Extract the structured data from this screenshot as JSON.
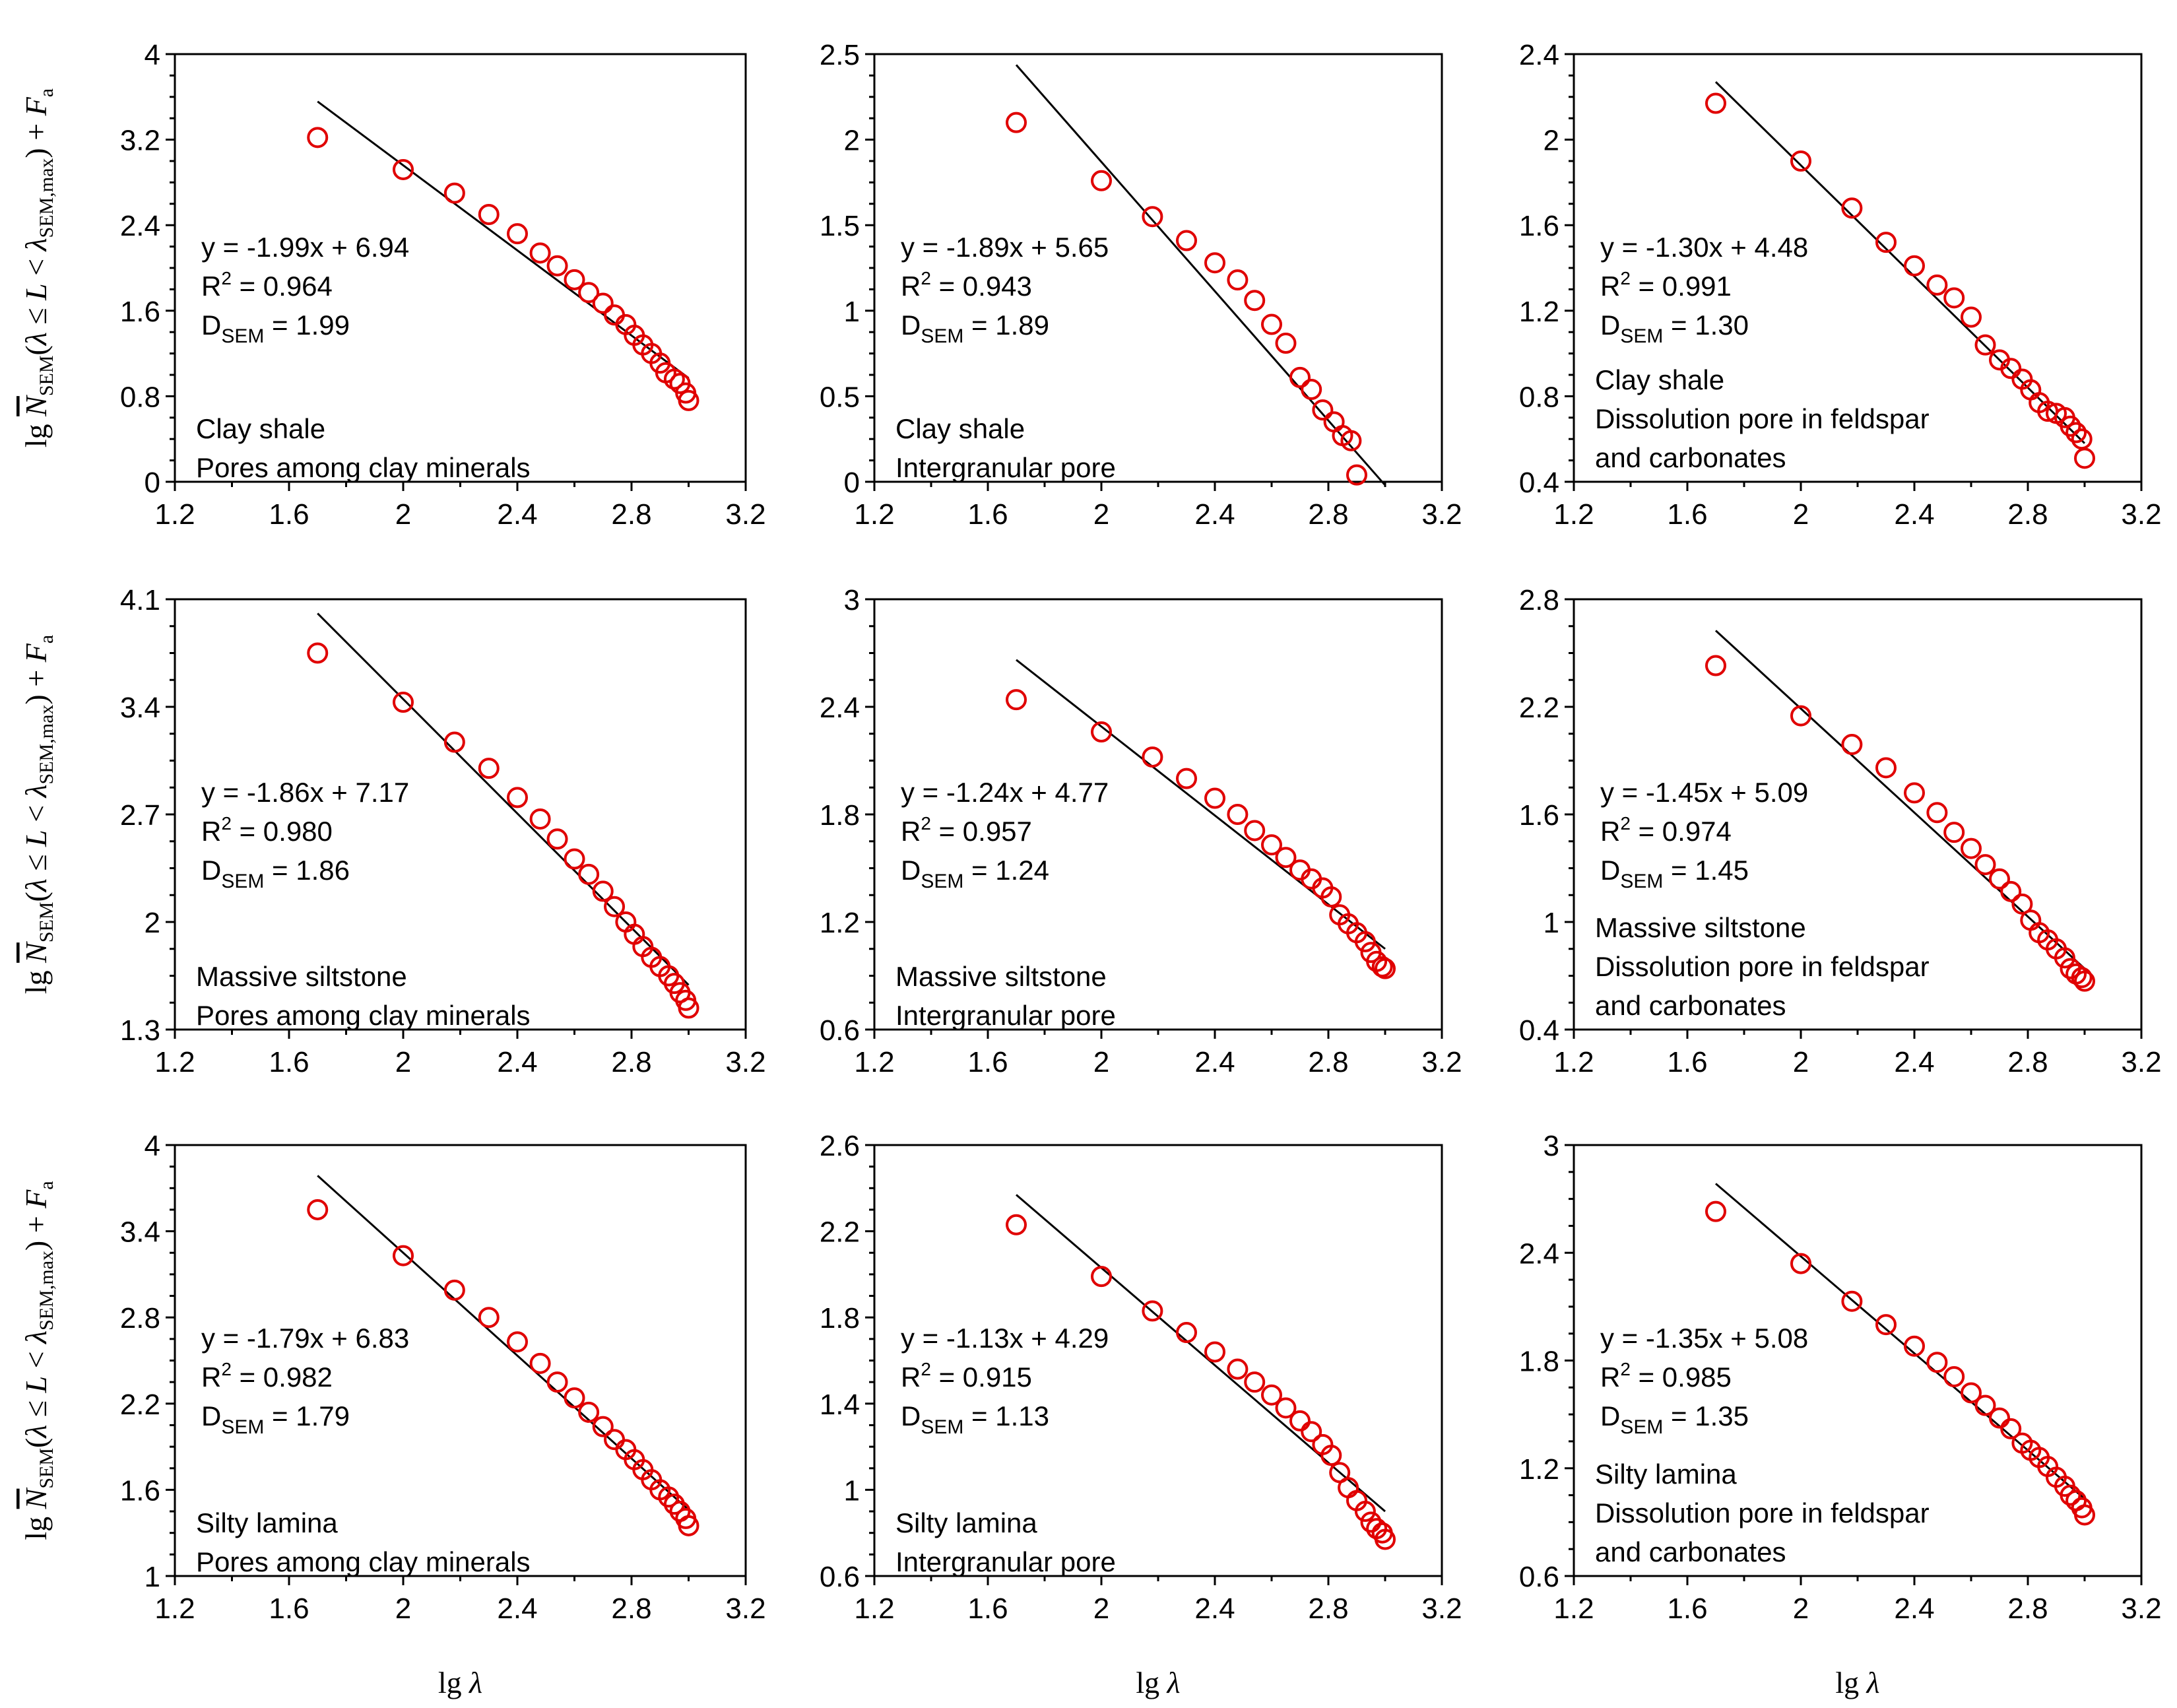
{
  "figure": {
    "ylabel": {
      "prefix": "lg ",
      "N": "N",
      "N_sub": "SEM",
      "open": "(",
      "lambda": "λ",
      "le": " ≤ ",
      "L": "L",
      "lt": " < ",
      "lambda2": "λ",
      "lambda2_sub": "SEM,max",
      "close": ")",
      "plus": " + ",
      "F": "F",
      "F_sub": "a"
    },
    "xlabel": {
      "prefix": "lg ",
      "lambda": "λ"
    }
  },
  "chart_data": [
    {
      "type": "scatter",
      "xlim": [
        1.2,
        3.2
      ],
      "xticks": [
        "1.2",
        "1.6",
        "2",
        "2.4",
        "2.8",
        "3.2"
      ],
      "ylim": [
        0,
        4
      ],
      "yticks": [
        "0",
        "0.8",
        "1.6",
        "2.4",
        "3.2",
        "4"
      ],
      "x": [
        1.7,
        2.0,
        2.18,
        2.3,
        2.4,
        2.48,
        2.54,
        2.6,
        2.65,
        2.7,
        2.74,
        2.78,
        2.81,
        2.84,
        2.87,
        2.9,
        2.92,
        2.95,
        2.97,
        2.99,
        3.0
      ],
      "y": [
        3.22,
        2.92,
        2.7,
        2.5,
        2.32,
        2.14,
        2.02,
        1.89,
        1.77,
        1.67,
        1.56,
        1.47,
        1.37,
        1.28,
        1.2,
        1.11,
        1.02,
        0.96,
        0.92,
        0.83,
        0.76
      ],
      "fit": {
        "slope": -1.99,
        "intercept": 6.94,
        "x_range": [
          1.7,
          3.0
        ]
      },
      "equation": "y = -1.99x + 6.94",
      "r2_label": "R",
      "r2_value": " = 0.964",
      "d_label": "D",
      "d_value": " = 1.99",
      "notes": [
        "Clay shale",
        "Pores among clay minerals"
      ]
    },
    {
      "type": "scatter",
      "xlim": [
        1.2,
        3.2
      ],
      "xticks": [
        "1.2",
        "1.6",
        "2",
        "2.4",
        "2.8",
        "3.2"
      ],
      "ylim": [
        0,
        2.5
      ],
      "yticks": [
        "0",
        "0.5",
        "1",
        "1.5",
        "2",
        "2.5"
      ],
      "x": [
        1.7,
        2.0,
        2.18,
        2.3,
        2.4,
        2.48,
        2.54,
        2.6,
        2.65,
        2.7,
        2.74,
        2.78,
        2.82,
        2.85,
        2.88,
        2.9
      ],
      "y": [
        2.1,
        1.76,
        1.55,
        1.41,
        1.28,
        1.18,
        1.06,
        0.92,
        0.81,
        0.61,
        0.54,
        0.42,
        0.35,
        0.27,
        0.24,
        0.04
      ],
      "fit": {
        "slope": -1.89,
        "intercept": 5.65,
        "x_range": [
          1.7,
          3.0
        ]
      },
      "equation": "y = -1.89x + 5.65",
      "r2_label": "R",
      "r2_value": " = 0.943",
      "d_label": "D",
      "d_value": " = 1.89",
      "notes": [
        "Clay shale",
        "Intergranular pore"
      ]
    },
    {
      "type": "scatter",
      "xlim": [
        1.2,
        3.2
      ],
      "xticks": [
        "1.2",
        "1.6",
        "2",
        "2.4",
        "2.8",
        "3.2"
      ],
      "ylim": [
        0.4,
        2.4
      ],
      "yticks": [
        "0.4",
        "0.8",
        "1.2",
        "1.6",
        "2",
        "2.4"
      ],
      "x": [
        1.7,
        2.0,
        2.18,
        2.3,
        2.4,
        2.48,
        2.54,
        2.6,
        2.65,
        2.7,
        2.74,
        2.78,
        2.81,
        2.84,
        2.87,
        2.9,
        2.93,
        2.95,
        2.97,
        2.99,
        3.0
      ],
      "y": [
        2.17,
        1.9,
        1.68,
        1.52,
        1.41,
        1.32,
        1.26,
        1.17,
        1.04,
        0.97,
        0.93,
        0.88,
        0.83,
        0.77,
        0.73,
        0.72,
        0.7,
        0.66,
        0.63,
        0.6,
        0.51
      ],
      "fit": {
        "slope": -1.3,
        "intercept": 4.48,
        "x_range": [
          1.7,
          3.0
        ]
      },
      "equation": "y = -1.30x + 4.48",
      "r2_label": "R",
      "r2_value": " = 0.991",
      "d_label": "D",
      "d_value": " = 1.30",
      "notes": [
        "Clay shale",
        "Dissolution pore in feldspar",
        "and carbonates"
      ]
    },
    {
      "type": "scatter",
      "xlim": [
        1.2,
        3.2
      ],
      "xticks": [
        "1.2",
        "1.6",
        "2",
        "2.4",
        "2.8",
        "3.2"
      ],
      "ylim": [
        1.3,
        4.1
      ],
      "yticks": [
        "1.3",
        "2",
        "2.7",
        "3.4",
        "4.1"
      ],
      "x": [
        1.7,
        2.0,
        2.18,
        2.3,
        2.4,
        2.48,
        2.54,
        2.6,
        2.65,
        2.7,
        2.74,
        2.78,
        2.81,
        2.84,
        2.87,
        2.9,
        2.93,
        2.95,
        2.97,
        2.99,
        3.0
      ],
      "y": [
        3.75,
        3.43,
        3.17,
        3.0,
        2.81,
        2.67,
        2.54,
        2.41,
        2.31,
        2.2,
        2.1,
        2.0,
        1.92,
        1.84,
        1.77,
        1.71,
        1.65,
        1.6,
        1.54,
        1.49,
        1.44
      ],
      "fit": {
        "slope": -1.86,
        "intercept": 7.17,
        "x_range": [
          1.7,
          3.0
        ]
      },
      "equation": "y = -1.86x + 7.17",
      "r2_label": "R",
      "r2_value": " = 0.980",
      "d_label": "D",
      "d_value": " = 1.86",
      "notes": [
        "Massive siltstone",
        "Pores among clay minerals"
      ]
    },
    {
      "type": "scatter",
      "xlim": [
        1.2,
        3.2
      ],
      "xticks": [
        "1.2",
        "1.6",
        "2",
        "2.4",
        "2.8",
        "3.2"
      ],
      "ylim": [
        0.6,
        3
      ],
      "yticks": [
        "0.6",
        "1.2",
        "1.8",
        "2.4",
        "3"
      ],
      "x": [
        1.7,
        2.0,
        2.18,
        2.3,
        2.4,
        2.48,
        2.54,
        2.6,
        2.65,
        2.7,
        2.74,
        2.78,
        2.81,
        2.84,
        2.87,
        2.9,
        2.93,
        2.95,
        2.97,
        2.99,
        3.0
      ],
      "y": [
        2.44,
        2.26,
        2.12,
        2.0,
        1.89,
        1.8,
        1.71,
        1.63,
        1.56,
        1.49,
        1.44,
        1.39,
        1.34,
        1.24,
        1.19,
        1.14,
        1.09,
        1.03,
        0.98,
        0.95,
        0.94
      ],
      "fit": {
        "slope": -1.24,
        "intercept": 4.77,
        "x_range": [
          1.7,
          3.0
        ]
      },
      "equation": "y = -1.24x + 4.77",
      "r2_label": "R",
      "r2_value": " = 0.957",
      "d_label": "D",
      "d_value": " = 1.24",
      "notes": [
        "Massive siltstone",
        "Intergranular pore"
      ]
    },
    {
      "type": "scatter",
      "xlim": [
        1.2,
        3.2
      ],
      "xticks": [
        "1.2",
        "1.6",
        "2",
        "2.4",
        "2.8",
        "3.2"
      ],
      "ylim": [
        0.4,
        2.8
      ],
      "yticks": [
        "0.4",
        "1",
        "1.6",
        "2.2",
        "2.8"
      ],
      "x": [
        1.7,
        2.0,
        2.18,
        2.3,
        2.4,
        2.48,
        2.54,
        2.6,
        2.65,
        2.7,
        2.74,
        2.78,
        2.81,
        2.84,
        2.87,
        2.9,
        2.93,
        2.95,
        2.97,
        2.99,
        3.0
      ],
      "y": [
        2.43,
        2.15,
        1.99,
        1.86,
        1.72,
        1.61,
        1.5,
        1.41,
        1.32,
        1.24,
        1.17,
        1.1,
        1.01,
        0.94,
        0.9,
        0.85,
        0.8,
        0.74,
        0.71,
        0.69,
        0.67
      ],
      "fit": {
        "slope": -1.45,
        "intercept": 5.09,
        "x_range": [
          1.7,
          3.0
        ]
      },
      "equation": "y = -1.45x + 5.09",
      "r2_label": "R",
      "r2_value": " = 0.974",
      "d_label": "D",
      "d_value": " = 1.45",
      "notes": [
        "Massive siltstone",
        "Dissolution pore in feldspar",
        "and carbonates"
      ]
    },
    {
      "type": "scatter",
      "xlim": [
        1.2,
        3.2
      ],
      "xticks": [
        "1.2",
        "1.6",
        "2",
        "2.4",
        "2.8",
        "3.2"
      ],
      "ylim": [
        1,
        4
      ],
      "yticks": [
        "1",
        "1.6",
        "2.2",
        "2.8",
        "3.4",
        "4"
      ],
      "x": [
        1.7,
        2.0,
        2.18,
        2.3,
        2.4,
        2.48,
        2.54,
        2.6,
        2.65,
        2.7,
        2.74,
        2.78,
        2.81,
        2.84,
        2.87,
        2.9,
        2.93,
        2.95,
        2.97,
        2.99,
        3.0
      ],
      "y": [
        3.55,
        3.23,
        2.99,
        2.8,
        2.63,
        2.48,
        2.35,
        2.24,
        2.14,
        2.04,
        1.95,
        1.88,
        1.81,
        1.74,
        1.67,
        1.6,
        1.55,
        1.5,
        1.45,
        1.4,
        1.35
      ],
      "fit": {
        "slope": -1.79,
        "intercept": 6.83,
        "x_range": [
          1.7,
          3.0
        ]
      },
      "equation": "y = -1.79x + 6.83",
      "r2_label": "R",
      "r2_value": " = 0.982",
      "d_label": "D",
      "d_value": " = 1.79",
      "notes": [
        "Silty lamina",
        "Pores among clay minerals"
      ]
    },
    {
      "type": "scatter",
      "xlim": [
        1.2,
        3.2
      ],
      "xticks": [
        "1.2",
        "1.6",
        "2",
        "2.4",
        "2.8",
        "3.2"
      ],
      "ylim": [
        0.6,
        2.6
      ],
      "yticks": [
        "0.6",
        "1",
        "1.4",
        "1.8",
        "2.2",
        "2.6"
      ],
      "x": [
        1.7,
        2.0,
        2.18,
        2.3,
        2.4,
        2.48,
        2.54,
        2.6,
        2.65,
        2.7,
        2.74,
        2.78,
        2.81,
        2.84,
        2.87,
        2.9,
        2.93,
        2.95,
        2.97,
        2.99,
        3.0
      ],
      "y": [
        2.23,
        1.99,
        1.83,
        1.73,
        1.64,
        1.56,
        1.5,
        1.44,
        1.38,
        1.32,
        1.27,
        1.21,
        1.16,
        1.08,
        1.01,
        0.95,
        0.9,
        0.85,
        0.82,
        0.8,
        0.77
      ],
      "fit": {
        "slope": -1.13,
        "intercept": 4.29,
        "x_range": [
          1.7,
          3.0
        ]
      },
      "equation": "y = -1.13x + 4.29",
      "r2_label": "R",
      "r2_value": " = 0.915",
      "d_label": "D",
      "d_value": " = 1.13",
      "notes": [
        "Silty lamina",
        "Intergranular pore"
      ]
    },
    {
      "type": "scatter",
      "xlim": [
        1.2,
        3.2
      ],
      "xticks": [
        "1.2",
        "1.6",
        "2",
        "2.4",
        "2.8",
        "3.2"
      ],
      "ylim": [
        0.6,
        3
      ],
      "yticks": [
        "0.6",
        "1.2",
        "1.8",
        "2.4",
        "3"
      ],
      "x": [
        1.7,
        2.0,
        2.18,
        2.3,
        2.4,
        2.48,
        2.54,
        2.6,
        2.65,
        2.7,
        2.74,
        2.78,
        2.81,
        2.84,
        2.87,
        2.9,
        2.93,
        2.95,
        2.97,
        2.99,
        3.0
      ],
      "y": [
        2.63,
        2.34,
        2.13,
        2.0,
        1.88,
        1.79,
        1.71,
        1.62,
        1.55,
        1.48,
        1.42,
        1.34,
        1.3,
        1.26,
        1.21,
        1.15,
        1.1,
        1.05,
        1.02,
        0.98,
        0.94
      ],
      "fit": {
        "slope": -1.35,
        "intercept": 5.08,
        "x_range": [
          1.7,
          3.0
        ]
      },
      "equation": "y = -1.35x + 5.08",
      "r2_label": "R",
      "r2_value": " = 0.985",
      "d_label": "D",
      "d_value": " = 1.35",
      "notes": [
        "Silty lamina",
        "Dissolution pore in feldspar",
        "and carbonates"
      ]
    }
  ]
}
